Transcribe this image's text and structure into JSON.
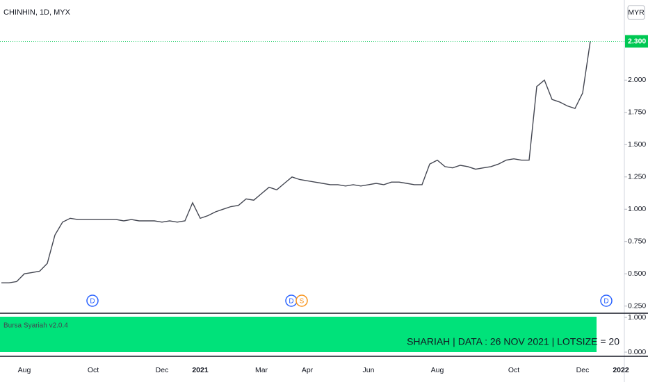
{
  "chart_data": {
    "type": "line",
    "title": "CHINHIN, 1D, MYX",
    "currency": "MYR",
    "categories": [
      null,
      null,
      null,
      "Aug",
      null,
      null,
      null,
      null,
      null,
      null,
      null,
      null,
      "Oct",
      null,
      null,
      null,
      null,
      null,
      null,
      null,
      null,
      "Dec",
      null,
      null,
      null,
      null,
      "2021",
      null,
      null,
      null,
      null,
      null,
      null,
      null,
      "Mar",
      null,
      null,
      null,
      null,
      null,
      "Apr",
      null,
      null,
      null,
      null,
      null,
      null,
      null,
      "Jun",
      null,
      null,
      null,
      null,
      null,
      null,
      null,
      null,
      "Aug",
      null,
      null,
      null,
      null,
      null,
      null,
      null,
      null,
      null,
      "Oct",
      null,
      null,
      null,
      null,
      null,
      null,
      null,
      null,
      "Dec",
      null,
      null,
      null,
      null,
      "2022"
    ],
    "series": [
      {
        "name": "CHINHIN",
        "color": "#434651",
        "values": [
          0.43,
          0.43,
          0.44,
          0.5,
          0.51,
          0.52,
          0.58,
          0.8,
          0.9,
          0.93,
          0.92,
          0.92,
          0.92,
          0.92,
          0.92,
          0.92,
          0.91,
          0.92,
          0.91,
          0.91,
          0.91,
          0.9,
          0.91,
          0.9,
          0.91,
          1.05,
          0.93,
          0.95,
          0.98,
          1.0,
          1.02,
          1.03,
          1.08,
          1.07,
          1.12,
          1.17,
          1.15,
          1.2,
          1.25,
          1.23,
          1.22,
          1.21,
          1.2,
          1.19,
          1.19,
          1.18,
          1.19,
          1.18,
          1.19,
          1.2,
          1.19,
          1.21,
          1.21,
          1.2,
          1.19,
          1.19,
          1.35,
          1.38,
          1.33,
          1.32,
          1.34,
          1.33,
          1.31,
          1.32,
          1.33,
          1.35,
          1.38,
          1.39,
          1.38,
          1.38,
          1.95,
          2.0,
          1.85,
          1.83,
          1.8,
          1.78,
          1.9,
          2.3,
          null,
          null,
          null,
          null
        ]
      }
    ],
    "ylim": [
      0.2,
      2.62
    ],
    "yticks": [
      {
        "value": 0.25,
        "label": "0.250"
      },
      {
        "value": 0.5,
        "label": "0.500"
      },
      {
        "value": 0.75,
        "label": "0.750"
      },
      {
        "value": 1.0,
        "label": "1.000"
      },
      {
        "value": 1.25,
        "label": "1.250"
      },
      {
        "value": 1.5,
        "label": "1.500"
      },
      {
        "value": 1.75,
        "label": "1.750"
      },
      {
        "value": 2.0,
        "label": "2.000"
      }
    ],
    "last_price": {
      "value": 2.3,
      "label": "2.300",
      "color": "#00c853"
    }
  },
  "indicator": {
    "name": "Bursa Syariah v2.0.4",
    "text": "SHARIAH  |  DATA : 26 NOV 2021  |  LOTSIZE = 20",
    "ylim": [
      0,
      1
    ],
    "yticks": [
      {
        "value": 1,
        "label": "1.000"
      },
      {
        "value": 0,
        "label": "0.000"
      }
    ]
  },
  "events": [
    "D",
    "D",
    "S",
    "D"
  ]
}
